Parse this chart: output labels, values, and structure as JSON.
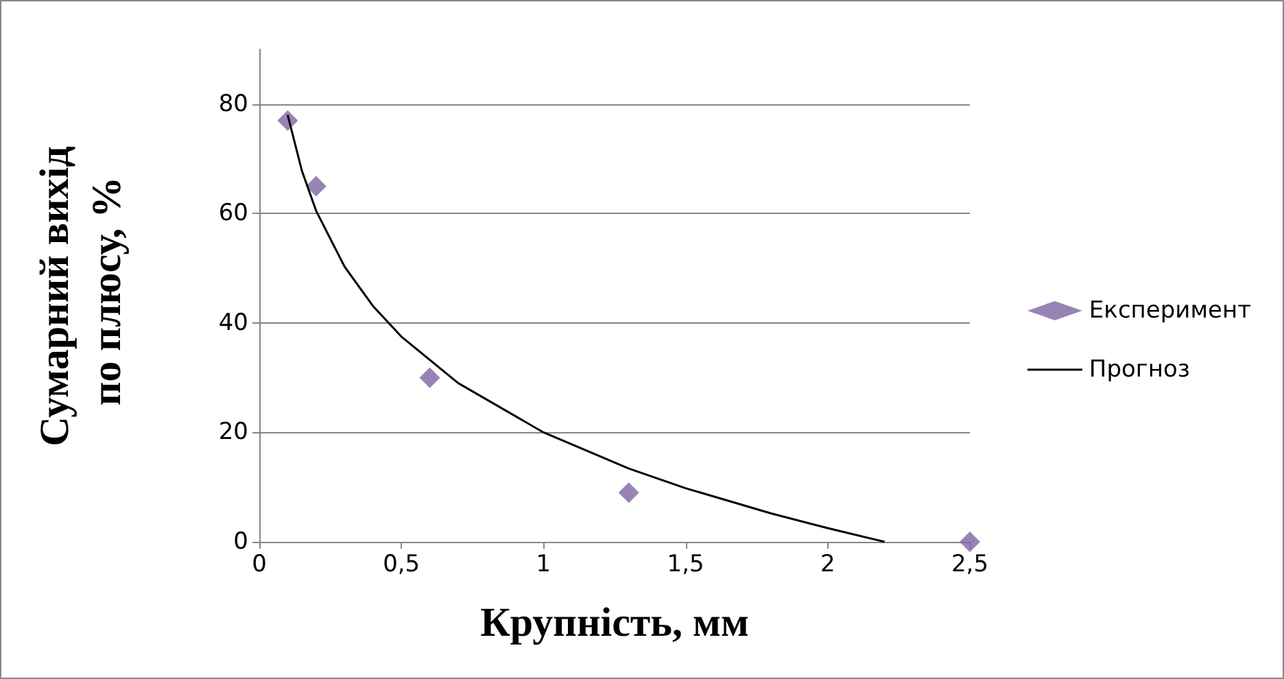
{
  "chart_data": {
    "type": "scatter",
    "xlabel": "Крупність, мм",
    "ylabel": "Сумарний вихід по плюсу, %",
    "xlim": [
      0,
      2.5
    ],
    "xticks": [
      0,
      {
        "value": 0.5,
        "label": "0,5"
      },
      1,
      {
        "value": 1.5,
        "label": "1,5"
      },
      2,
      {
        "value": 2.5,
        "label": "2,5"
      }
    ],
    "ylim": [
      0,
      90
    ],
    "yticks": [
      0,
      20,
      40,
      60,
      80
    ],
    "grid": "y",
    "legend": "right",
    "series": [
      {
        "name": "Експеримент",
        "marker": "diamond",
        "color": "#8064a2",
        "x": [
          0.1,
          0.2,
          0.6,
          1.3,
          2.5
        ],
        "values": [
          77,
          65,
          30,
          9,
          0
        ]
      },
      {
        "name": "Прогноз",
        "type": "line",
        "marker": "none",
        "color": "#000000",
        "x": [
          0.1,
          0.15,
          0.2,
          0.3,
          0.4,
          0.5,
          0.7,
          1,
          1.3,
          1.5,
          1.8,
          2,
          2.2
        ],
        "values": [
          78,
          67.8,
          60.5,
          50.3,
          43.1,
          37.5,
          29,
          20,
          13.4,
          9.8,
          5.2,
          2.5,
          0
        ]
      }
    ]
  }
}
